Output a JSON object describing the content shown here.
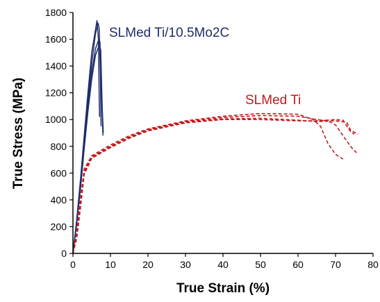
{
  "chart_data": {
    "type": "line",
    "xlabel": "True Strain (%)",
    "ylabel": "True Stress (MPa)",
    "xlim": [
      0,
      80
    ],
    "ylim": [
      0,
      1800
    ],
    "xticks": [
      "0",
      "10",
      "20",
      "30",
      "40",
      "50",
      "60",
      "70",
      "80"
    ],
    "yticks": [
      "0",
      "200",
      "400",
      "600",
      "800",
      "1000",
      "1200",
      "1400",
      "1600",
      "1800"
    ],
    "grid": false,
    "legend": "none",
    "annotations": [
      {
        "text": "SLMed Ti/10.5Mo2C",
        "color": "#1f2d6b",
        "series_group": "composite"
      },
      {
        "text": "SLMed Ti",
        "color": "#c0191c",
        "series_group": "ti"
      }
    ],
    "series": [
      {
        "group": "composite",
        "color": "#1f2d6b",
        "style": "solid",
        "points": [
          [
            0,
            0
          ],
          [
            1,
            250
          ],
          [
            2,
            550
          ],
          [
            3,
            880
          ],
          [
            4,
            1200
          ],
          [
            5,
            1500
          ],
          [
            6.4,
            1740
          ],
          [
            6.8,
            1600
          ],
          [
            7,
            1150
          ],
          [
            7.1,
            1020
          ]
        ]
      },
      {
        "group": "composite",
        "color": "#1f2d6b",
        "style": "solid",
        "points": [
          [
            0,
            0
          ],
          [
            1,
            240
          ],
          [
            2,
            520
          ],
          [
            3,
            850
          ],
          [
            4,
            1150
          ],
          [
            5,
            1420
          ],
          [
            6,
            1640
          ],
          [
            6.7,
            1720
          ],
          [
            7,
            1680
          ],
          [
            7.3,
            1350
          ],
          [
            7.5,
            950
          ]
        ]
      },
      {
        "group": "composite",
        "color": "#1f2d6b",
        "style": "solid",
        "points": [
          [
            0,
            0
          ],
          [
            1,
            230
          ],
          [
            2,
            500
          ],
          [
            3,
            800
          ],
          [
            4,
            1100
          ],
          [
            5,
            1350
          ],
          [
            6,
            1530
          ],
          [
            6.9,
            1600
          ],
          [
            7.2,
            1580
          ],
          [
            7.6,
            1200
          ],
          [
            8,
            880
          ]
        ]
      },
      {
        "group": "composite",
        "color": "#1f2d6b",
        "style": "solid",
        "points": [
          [
            0,
            0
          ],
          [
            1,
            220
          ],
          [
            2,
            480
          ],
          [
            3,
            780
          ],
          [
            4,
            1060
          ],
          [
            5,
            1300
          ],
          [
            6,
            1480
          ],
          [
            7,
            1560
          ],
          [
            7.4,
            1520
          ],
          [
            7.8,
            1100
          ],
          [
            8.1,
            900
          ]
        ]
      },
      {
        "group": "ti",
        "color": "#c0191c",
        "style": "dashed",
        "points": [
          [
            0,
            0
          ],
          [
            1,
            150
          ],
          [
            2,
            400
          ],
          [
            3,
            630
          ],
          [
            5,
            730
          ],
          [
            10,
            810
          ],
          [
            15,
            880
          ],
          [
            20,
            930
          ],
          [
            30,
            990
          ],
          [
            40,
            1025
          ],
          [
            50,
            1045
          ],
          [
            60,
            1040
          ],
          [
            64,
            1000
          ],
          [
            66,
            950
          ],
          [
            68,
            820
          ],
          [
            70,
            740
          ],
          [
            72,
            705
          ]
        ]
      },
      {
        "group": "ti",
        "color": "#c0191c",
        "style": "dashed",
        "points": [
          [
            0,
            0
          ],
          [
            1,
            130
          ],
          [
            2,
            380
          ],
          [
            3,
            610
          ],
          [
            5,
            720
          ],
          [
            10,
            800
          ],
          [
            15,
            870
          ],
          [
            20,
            925
          ],
          [
            30,
            985
          ],
          [
            40,
            1015
          ],
          [
            50,
            1030
          ],
          [
            60,
            1025
          ],
          [
            65,
            1000
          ],
          [
            68,
            990
          ],
          [
            70,
            960
          ],
          [
            72,
            880
          ],
          [
            74,
            800
          ],
          [
            76,
            740
          ]
        ]
      },
      {
        "group": "ti",
        "color": "#c0191c",
        "style": "dashed",
        "points": [
          [
            0,
            0
          ],
          [
            1,
            120
          ],
          [
            2,
            360
          ],
          [
            3,
            600
          ],
          [
            5,
            715
          ],
          [
            10,
            795
          ],
          [
            15,
            865
          ],
          [
            20,
            920
          ],
          [
            30,
            980
          ],
          [
            40,
            1005
          ],
          [
            50,
            1010
          ],
          [
            60,
            995
          ],
          [
            65,
            985
          ],
          [
            70,
            990
          ],
          [
            73,
            980
          ],
          [
            74,
            920
          ],
          [
            76,
            890
          ]
        ]
      },
      {
        "group": "ti",
        "color": "#c0191c",
        "style": "dashed",
        "points": [
          [
            0,
            0
          ],
          [
            1,
            110
          ],
          [
            2,
            340
          ],
          [
            3,
            590
          ],
          [
            5,
            710
          ],
          [
            10,
            790
          ],
          [
            15,
            860
          ],
          [
            20,
            915
          ],
          [
            30,
            975
          ],
          [
            40,
            1000
          ],
          [
            50,
            1000
          ],
          [
            60,
            990
          ],
          [
            65,
            990
          ],
          [
            70,
            1000
          ],
          [
            72,
            995
          ],
          [
            74,
            910
          ],
          [
            75,
            890
          ]
        ]
      }
    ]
  }
}
